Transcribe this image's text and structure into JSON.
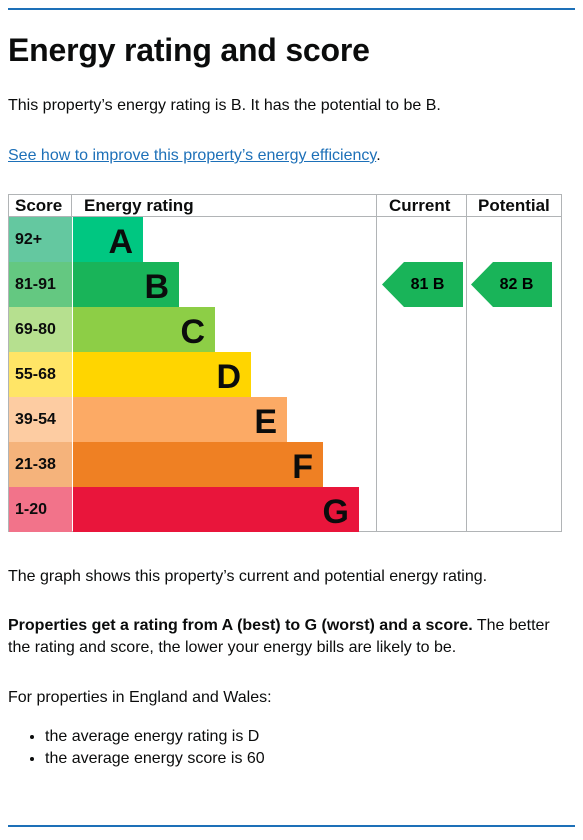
{
  "page": {
    "title": "Energy rating and score",
    "intro": "This property’s energy rating is B. It has the potential to be B.",
    "link_text": "See how to improve this property’s energy efficiency",
    "link_suffix": ".",
    "graph_note": "The graph shows this property’s current and potential energy rating.",
    "rating_bold": "Properties get a rating from A (best) to G (worst) and a score.",
    "rating_rest": " The better the rating and score, the lower your energy bills are likely to be.",
    "region_note": "For properties in England and Wales:",
    "bullets": [
      "the average energy rating is D",
      "the average energy score is 60"
    ]
  },
  "chart_data": {
    "type": "table",
    "headers": {
      "score": "Score",
      "rating": "Energy rating",
      "current": "Current",
      "potential": "Potential"
    },
    "bands": [
      {
        "score": "92+",
        "letter": "A",
        "color": "#00c781",
        "score_bg": "#64c8a0"
      },
      {
        "score": "81-91",
        "letter": "B",
        "color": "#19b459",
        "score_bg": "#64c881"
      },
      {
        "score": "69-80",
        "letter": "C",
        "color": "#8dce46",
        "score_bg": "#b6e08f"
      },
      {
        "score": "55-68",
        "letter": "D",
        "color": "#ffd500",
        "score_bg": "#ffe566"
      },
      {
        "score": "39-54",
        "letter": "E",
        "color": "#fcaa65",
        "score_bg": "#fdcca2"
      },
      {
        "score": "21-38",
        "letter": "F",
        "color": "#ef8023",
        "score_bg": "#f5b37b"
      },
      {
        "score": "1-20",
        "letter": "G",
        "color": "#e9153b",
        "score_bg": "#f2738a"
      }
    ],
    "current": {
      "score": 81,
      "band": "B",
      "label": "81 B",
      "color": "#19b459"
    },
    "potential": {
      "score": 82,
      "band": "B",
      "label": "82 B",
      "color": "#19b459"
    }
  }
}
